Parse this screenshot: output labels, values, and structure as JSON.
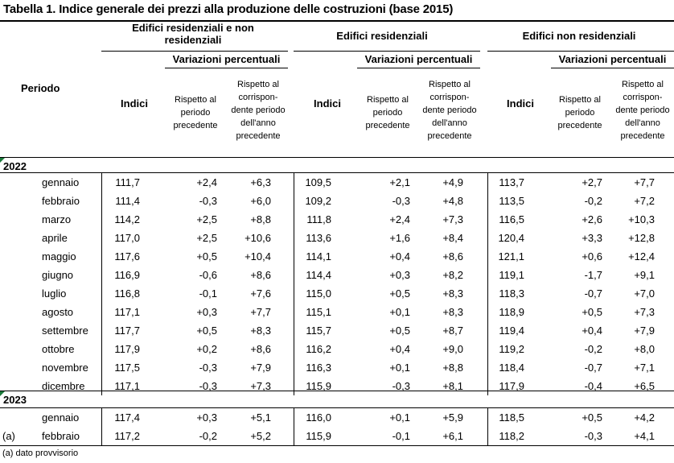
{
  "title": "Tabella 1. Indice generale dei prezzi alla produzione delle costruzioni (base 2015)",
  "header": {
    "periodo": "Periodo",
    "groups": [
      "Edifici residenziali e non residenziali",
      "Edifici residenziali",
      "Edifici non residenziali"
    ],
    "variazioni": "Variazioni percentuali",
    "indici": "Indici",
    "rispetto_precedente": "Rispetto al periodo precedente",
    "rispetto_anno": "Rispetto al corrispon-dente periodo dell'anno precedente"
  },
  "years": [
    {
      "year": "2022",
      "rows": [
        {
          "month": "gennaio",
          "values": [
            "111,7",
            "+2,4",
            "+6,3",
            "109,5",
            "+2,1",
            "+4,9",
            "113,7",
            "+2,7",
            "+7,7"
          ]
        },
        {
          "month": "febbraio",
          "values": [
            "111,4",
            "-0,3",
            "+6,0",
            "109,2",
            "-0,3",
            "+4,8",
            "113,5",
            "-0,2",
            "+7,2"
          ]
        },
        {
          "month": "marzo",
          "values": [
            "114,2",
            "+2,5",
            "+8,8",
            "111,8",
            "+2,4",
            "+7,3",
            "116,5",
            "+2,6",
            "+10,3"
          ]
        },
        {
          "month": "aprile",
          "values": [
            "117,0",
            "+2,5",
            "+10,6",
            "113,6",
            "+1,6",
            "+8,4",
            "120,4",
            "+3,3",
            "+12,8"
          ]
        },
        {
          "month": "maggio",
          "values": [
            "117,6",
            "+0,5",
            "+10,4",
            "114,1",
            "+0,4",
            "+8,6",
            "121,1",
            "+0,6",
            "+12,4"
          ]
        },
        {
          "month": "giugno",
          "values": [
            "116,9",
            "-0,6",
            "+8,6",
            "114,4",
            "+0,3",
            "+8,2",
            "119,1",
            "-1,7",
            "+9,1"
          ]
        },
        {
          "month": "luglio",
          "values": [
            "116,8",
            "-0,1",
            "+7,6",
            "115,0",
            "+0,5",
            "+8,3",
            "118,3",
            "-0,7",
            "+7,0"
          ]
        },
        {
          "month": "agosto",
          "values": [
            "117,1",
            "+0,3",
            "+7,7",
            "115,1",
            "+0,1",
            "+8,3",
            "118,9",
            "+0,5",
            "+7,3"
          ]
        },
        {
          "month": "settembre",
          "values": [
            "117,7",
            "+0,5",
            "+8,3",
            "115,7",
            "+0,5",
            "+8,7",
            "119,4",
            "+0,4",
            "+7,9"
          ]
        },
        {
          "month": "ottobre",
          "values": [
            "117,9",
            "+0,2",
            "+8,6",
            "116,2",
            "+0,4",
            "+9,0",
            "119,2",
            "-0,2",
            "+8,0"
          ]
        },
        {
          "month": "novembre",
          "values": [
            "117,5",
            "-0,3",
            "+7,9",
            "116,3",
            "+0,1",
            "+8,8",
            "118,4",
            "-0,7",
            "+7,1"
          ]
        },
        {
          "month": "dicembre",
          "values": [
            "117,1",
            "-0,3",
            "+7,3",
            "115,9",
            "-0,3",
            "+8,1",
            "117,9",
            "-0,4",
            "+6,5"
          ]
        }
      ]
    },
    {
      "year": "2023",
      "rows": [
        {
          "month": "gennaio",
          "values": [
            "117,4",
            "+0,3",
            "+5,1",
            "116,0",
            "+0,1",
            "+5,9",
            "118,5",
            "+0,5",
            "+4,2"
          ]
        },
        {
          "month": "febbraio",
          "note": "(a)",
          "values": [
            "117,2",
            "-0,2",
            "+5,2",
            "115,9",
            "-0,1",
            "+6,1",
            "118,2",
            "-0,3",
            "+4,1"
          ]
        }
      ]
    }
  ],
  "footnote": "(a) dato provvisorio",
  "colors": {
    "marker": "#1a7a3a",
    "text": "#000000",
    "background": "#ffffff"
  }
}
